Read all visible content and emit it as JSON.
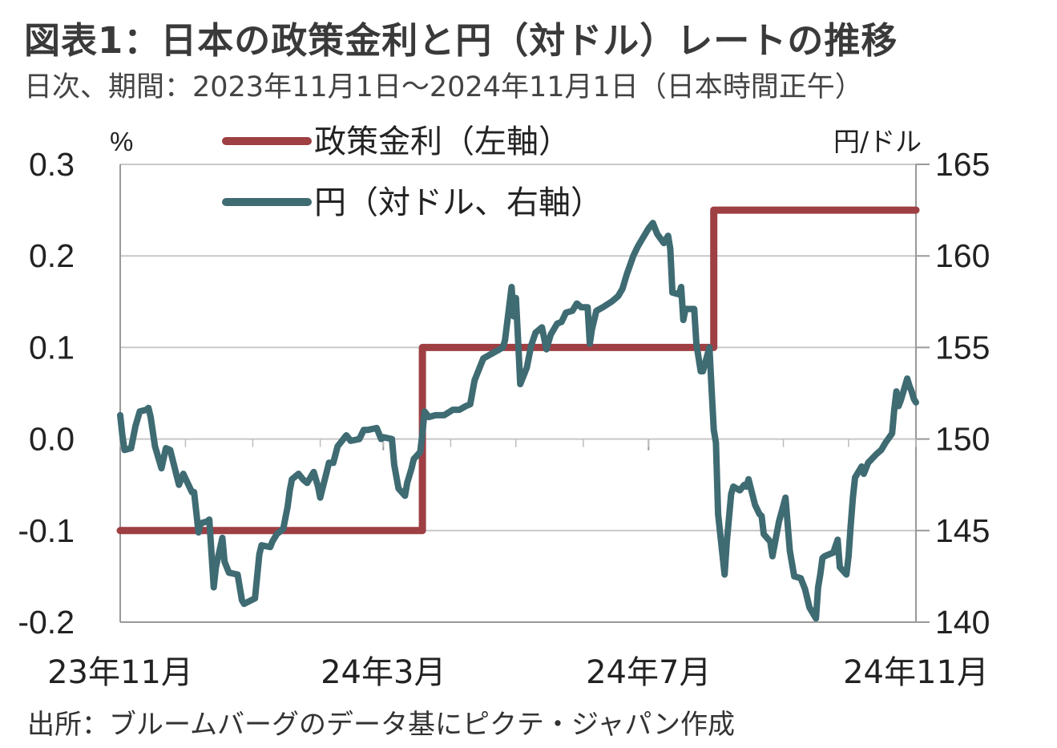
{
  "title": "図表1：日本の政策金利と円（対ドル）レートの推移",
  "subtitle": "日次、期間：2023年11月1日～2024年11月1日（日本時間正午）",
  "source": "出所：ブルームバーグのデータ基にピクテ・ジャパン作成",
  "chart_data": {
    "type": "line",
    "left_axis": {
      "unit": "%",
      "ylim": [
        -0.2,
        0.3
      ],
      "ticks": [
        "0.3",
        "0.2",
        "0.1",
        "0.0",
        "-0.1",
        "-0.2"
      ]
    },
    "right_axis": {
      "unit": "円/ドル",
      "ylim": [
        140,
        165
      ],
      "ticks": [
        "165",
        "160",
        "155",
        "150",
        "145",
        "140"
      ]
    },
    "x_axis": {
      "range": [
        "2023-11-01",
        "2024-11-01"
      ],
      "tick_labels": [
        "23年11月",
        "24年3月",
        "24年7月",
        "24年11月"
      ],
      "tick_dates": [
        "2023-11-01",
        "2024-03-01",
        "2024-07-01",
        "2024-11-01"
      ]
    },
    "grid": true,
    "legend_position": "top-center",
    "series": [
      {
        "name": "政策金利（左軸）",
        "axis": "left",
        "color": "#9e3f44",
        "points": [
          [
            "2023-11-01",
            -0.1
          ],
          [
            "2024-03-19",
            -0.1
          ],
          [
            "2024-03-19",
            0.1
          ],
          [
            "2024-07-31",
            0.1
          ],
          [
            "2024-07-31",
            0.25
          ],
          [
            "2024-11-01",
            0.25
          ]
        ]
      },
      {
        "name": "円（対ドル、右軸）",
        "axis": "right",
        "color": "#3f6b73",
        "points": [
          [
            "2023-11-01",
            151.3
          ],
          [
            "2023-11-02",
            150.2
          ],
          [
            "2023-11-03",
            149.4
          ],
          [
            "2023-11-06",
            149.5
          ],
          [
            "2023-11-08",
            150.7
          ],
          [
            "2023-11-10",
            151.5
          ],
          [
            "2023-11-13",
            151.6
          ],
          [
            "2023-11-14",
            151.7
          ],
          [
            "2023-11-15",
            151.2
          ],
          [
            "2023-11-17",
            149.6
          ],
          [
            "2023-11-20",
            148.4
          ],
          [
            "2023-11-22",
            149.5
          ],
          [
            "2023-11-24",
            149.4
          ],
          [
            "2023-11-28",
            147.5
          ],
          [
            "2023-11-30",
            148.1
          ],
          [
            "2023-12-04",
            147.1
          ],
          [
            "2023-12-05",
            147.1
          ],
          [
            "2023-12-07",
            144.9
          ],
          [
            "2023-12-08",
            145.4
          ],
          [
            "2023-12-11",
            145.5
          ],
          [
            "2023-12-12",
            145.6
          ],
          [
            "2023-12-14",
            141.9
          ],
          [
            "2023-12-15",
            143.0
          ],
          [
            "2023-12-18",
            144.6
          ],
          [
            "2023-12-19",
            143.3
          ],
          [
            "2023-12-21",
            142.7
          ],
          [
            "2023-12-25",
            142.6
          ],
          [
            "2023-12-27",
            141.2
          ],
          [
            "2023-12-28",
            141.0
          ],
          [
            "2024-01-02",
            141.3
          ],
          [
            "2024-01-04",
            143.7
          ],
          [
            "2024-01-05",
            144.2
          ],
          [
            "2024-01-09",
            144.1
          ],
          [
            "2024-01-10",
            144.4
          ],
          [
            "2024-01-12",
            144.8
          ],
          [
            "2024-01-15",
            145.1
          ],
          [
            "2024-01-17",
            146.3
          ],
          [
            "2024-01-18",
            147.2
          ],
          [
            "2024-01-19",
            147.8
          ],
          [
            "2024-01-22",
            148.1
          ],
          [
            "2024-01-24",
            147.8
          ],
          [
            "2024-01-26",
            147.6
          ],
          [
            "2024-01-29",
            148.2
          ],
          [
            "2024-01-31",
            147.4
          ],
          [
            "2024-02-01",
            146.8
          ],
          [
            "2024-02-05",
            148.7
          ],
          [
            "2024-02-07",
            148.7
          ],
          [
            "2024-02-09",
            149.6
          ],
          [
            "2024-02-13",
            150.2
          ],
          [
            "2024-02-15",
            149.9
          ],
          [
            "2024-02-19",
            150.0
          ],
          [
            "2024-02-21",
            150.5
          ],
          [
            "2024-02-23",
            150.5
          ],
          [
            "2024-02-27",
            150.6
          ],
          [
            "2024-02-29",
            150.0
          ],
          [
            "2024-03-01",
            150.1
          ],
          [
            "2024-03-05",
            150.0
          ],
          [
            "2024-03-06",
            148.6
          ],
          [
            "2024-03-08",
            147.3
          ],
          [
            "2024-03-11",
            146.9
          ],
          [
            "2024-03-12",
            147.6
          ],
          [
            "2024-03-14",
            148.4
          ],
          [
            "2024-03-15",
            148.9
          ],
          [
            "2024-03-18",
            149.3
          ],
          [
            "2024-03-19",
            150.3
          ],
          [
            "2024-03-20",
            151.5
          ],
          [
            "2024-03-22",
            151.2
          ],
          [
            "2024-03-25",
            151.3
          ],
          [
            "2024-03-29",
            151.3
          ],
          [
            "2024-04-02",
            151.6
          ],
          [
            "2024-04-05",
            151.6
          ],
          [
            "2024-04-08",
            151.8
          ],
          [
            "2024-04-10",
            151.9
          ],
          [
            "2024-04-12",
            153.2
          ],
          [
            "2024-04-16",
            154.4
          ],
          [
            "2024-04-19",
            154.6
          ],
          [
            "2024-04-22",
            154.8
          ],
          [
            "2024-04-25",
            155.0
          ],
          [
            "2024-04-26",
            155.4
          ],
          [
            "2024-04-29",
            158.3
          ],
          [
            "2024-04-30",
            156.7
          ],
          [
            "2024-05-01",
            157.7
          ],
          [
            "2024-05-02",
            155.4
          ],
          [
            "2024-05-03",
            153.0
          ],
          [
            "2024-05-06",
            153.9
          ],
          [
            "2024-05-08",
            155.1
          ],
          [
            "2024-05-10",
            155.8
          ],
          [
            "2024-05-13",
            156.1
          ],
          [
            "2024-05-15",
            154.9
          ],
          [
            "2024-05-17",
            155.7
          ],
          [
            "2024-05-20",
            156.3
          ],
          [
            "2024-05-22",
            156.4
          ],
          [
            "2024-05-24",
            156.9
          ],
          [
            "2024-05-27",
            157.0
          ],
          [
            "2024-05-29",
            157.4
          ],
          [
            "2024-05-31",
            157.2
          ],
          [
            "2024-06-03",
            157.2
          ],
          [
            "2024-06-04",
            155.2
          ],
          [
            "2024-06-05",
            156.0
          ],
          [
            "2024-06-07",
            157.0
          ],
          [
            "2024-06-10",
            157.2
          ],
          [
            "2024-06-14",
            157.5
          ],
          [
            "2024-06-17",
            157.8
          ],
          [
            "2024-06-19",
            158.2
          ],
          [
            "2024-06-21",
            159.0
          ],
          [
            "2024-06-24",
            160.0
          ],
          [
            "2024-06-26",
            160.5
          ],
          [
            "2024-06-28",
            160.9
          ],
          [
            "2024-07-01",
            161.5
          ],
          [
            "2024-07-03",
            161.8
          ],
          [
            "2024-07-05",
            161.2
          ],
          [
            "2024-07-08",
            160.7
          ],
          [
            "2024-07-10",
            161.1
          ],
          [
            "2024-07-11",
            160.4
          ],
          [
            "2024-07-12",
            158.0
          ],
          [
            "2024-07-15",
            157.9
          ],
          [
            "2024-07-16",
            158.3
          ],
          [
            "2024-07-17",
            156.5
          ],
          [
            "2024-07-18",
            157.1
          ],
          [
            "2024-07-22",
            157.1
          ],
          [
            "2024-07-23",
            155.2
          ],
          [
            "2024-07-25",
            153.7
          ],
          [
            "2024-07-26",
            153.7
          ],
          [
            "2024-07-29",
            155.0
          ],
          [
            "2024-07-30",
            152.7
          ],
          [
            "2024-07-31",
            150.5
          ],
          [
            "2024-08-01",
            149.8
          ],
          [
            "2024-08-02",
            145.9
          ],
          [
            "2024-08-05",
            142.6
          ],
          [
            "2024-08-06",
            144.4
          ],
          [
            "2024-08-08",
            147.0
          ],
          [
            "2024-08-09",
            147.4
          ],
          [
            "2024-08-12",
            147.2
          ],
          [
            "2024-08-14",
            147.5
          ],
          [
            "2024-08-15",
            147.4
          ],
          [
            "2024-08-16",
            147.8
          ],
          [
            "2024-08-19",
            146.4
          ],
          [
            "2024-08-21",
            145.9
          ],
          [
            "2024-08-22",
            145.8
          ],
          [
            "2024-08-23",
            144.8
          ],
          [
            "2024-08-26",
            144.4
          ],
          [
            "2024-08-27",
            143.6
          ],
          [
            "2024-08-30",
            145.5
          ],
          [
            "2024-09-02",
            146.8
          ],
          [
            "2024-09-04",
            143.9
          ],
          [
            "2024-09-06",
            142.5
          ],
          [
            "2024-09-09",
            142.4
          ],
          [
            "2024-09-11",
            141.8
          ],
          [
            "2024-09-13",
            140.8
          ],
          [
            "2024-09-16",
            140.2
          ],
          [
            "2024-09-17",
            141.9
          ],
          [
            "2024-09-18",
            142.6
          ],
          [
            "2024-09-19",
            143.5
          ],
          [
            "2024-09-20",
            143.6
          ],
          [
            "2024-09-24",
            143.8
          ],
          [
            "2024-09-26",
            144.5
          ],
          [
            "2024-09-27",
            143.0
          ],
          [
            "2024-09-30",
            142.6
          ],
          [
            "2024-10-01",
            143.6
          ],
          [
            "2024-10-02",
            145.3
          ],
          [
            "2024-10-03",
            146.8
          ],
          [
            "2024-10-04",
            147.9
          ],
          [
            "2024-10-07",
            148.5
          ],
          [
            "2024-10-08",
            148.1
          ],
          [
            "2024-10-10",
            148.7
          ],
          [
            "2024-10-14",
            149.2
          ],
          [
            "2024-10-16",
            149.4
          ],
          [
            "2024-10-18",
            149.8
          ],
          [
            "2024-10-21",
            150.3
          ],
          [
            "2024-10-22",
            151.6
          ],
          [
            "2024-10-23",
            152.6
          ],
          [
            "2024-10-24",
            151.8
          ],
          [
            "2024-10-25",
            152.1
          ],
          [
            "2024-10-28",
            153.3
          ],
          [
            "2024-10-29",
            152.9
          ],
          [
            "2024-10-30",
            152.6
          ],
          [
            "2024-10-31",
            152.2
          ],
          [
            "2024-11-01",
            152.0
          ]
        ]
      }
    ]
  }
}
